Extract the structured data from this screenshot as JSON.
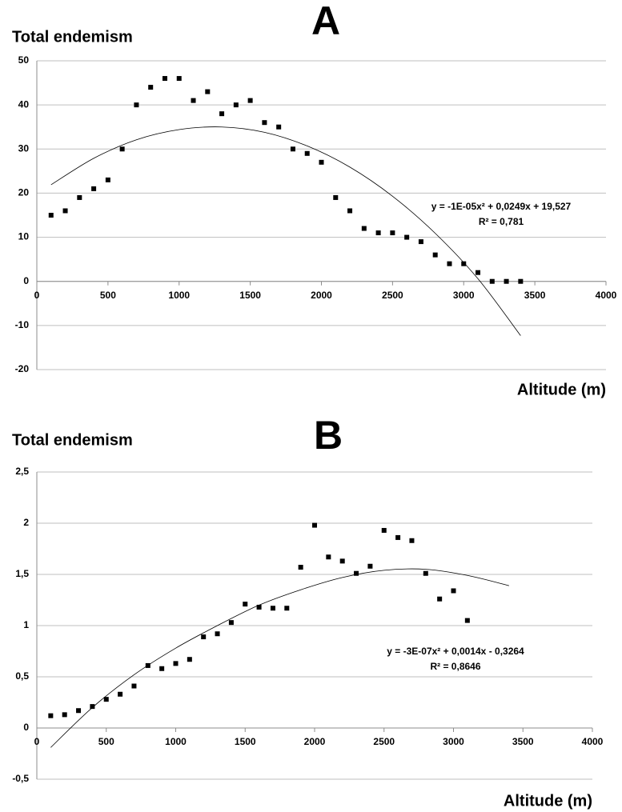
{
  "chart_data": [
    {
      "type": "scatter",
      "title": "A",
      "y_label": "Total endemism",
      "x_label": "Altitude (m)",
      "x": [
        100,
        200,
        300,
        400,
        500,
        600,
        700,
        800,
        900,
        1000,
        1100,
        1200,
        1300,
        1400,
        1500,
        1600,
        1700,
        1800,
        1900,
        2000,
        2100,
        2200,
        2300,
        2400,
        2500,
        2600,
        2700,
        2800,
        2900,
        3000,
        3100,
        3200,
        3300,
        3400
      ],
      "values": [
        15,
        16,
        19,
        21,
        23,
        30,
        40,
        44,
        46,
        46,
        41,
        43,
        38,
        40,
        41,
        36,
        35,
        30,
        29,
        27,
        19,
        16,
        12,
        11,
        11,
        10,
        9,
        6,
        4,
        4,
        2,
        0,
        0,
        0
      ],
      "color": "#000000",
      "trendline": {
        "x": [
          100,
          400,
          700,
          1000,
          1300,
          1600,
          1900,
          2200,
          2500,
          2800,
          3100,
          3400
        ],
        "values": [
          21.9,
          27.9,
          32.1,
          34.4,
          35.0,
          33.8,
          30.7,
          25.9,
          19.3,
          10.9,
          0.6,
          -12.3
        ],
        "color": "#000000",
        "equation": "y = -1E-05x² + 0,0249x + 19,527",
        "r_squared": "R² = 0,781"
      },
      "xlim": [
        0,
        4000
      ],
      "xticks": [
        0,
        500,
        1000,
        1500,
        2000,
        2500,
        3000,
        3500,
        4000
      ],
      "ylim": [
        -20,
        50
      ],
      "yticks": [
        -20,
        -10,
        0,
        10,
        20,
        30,
        40,
        50
      ],
      "grid": true
    },
    {
      "type": "scatter",
      "title": "B",
      "y_label": "Total endemism",
      "x_label": "Altitude (m)",
      "x": [
        100,
        200,
        300,
        400,
        500,
        600,
        700,
        800,
        900,
        1000,
        1100,
        1200,
        1300,
        1400,
        1500,
        1600,
        1700,
        1800,
        1900,
        2000,
        2100,
        2200,
        2300,
        2400,
        2500,
        2600,
        2700,
        2800,
        2900,
        3000,
        3100
      ],
      "values": [
        0.12,
        0.13,
        0.17,
        0.21,
        0.28,
        0.33,
        0.41,
        0.61,
        0.58,
        0.63,
        0.67,
        0.89,
        0.92,
        1.03,
        1.21,
        1.18,
        1.17,
        1.17,
        1.57,
        1.98,
        1.67,
        1.63,
        1.51,
        1.58,
        1.93,
        1.86,
        1.83,
        1.51,
        1.26,
        1.34,
        1.05
      ],
      "color": "#000000",
      "trendline": {
        "x": [
          100,
          400,
          700,
          1000,
          1300,
          1600,
          1900,
          2200,
          2500,
          2800,
          3100,
          3400
        ],
        "values": [
          -0.19,
          0.2,
          0.52,
          0.78,
          1.0,
          1.2,
          1.35,
          1.47,
          1.54,
          1.55,
          1.49,
          1.39
        ],
        "color": "#000000",
        "equation": "y = -3E-07x² + 0,0014x - 0,3264",
        "r_squared": "R² = 0,8646"
      },
      "xlim": [
        0,
        4000
      ],
      "xticks": [
        0,
        500,
        1000,
        1500,
        2000,
        2500,
        3000,
        3500,
        4000
      ],
      "ylim": [
        -0.5,
        2.5
      ],
      "yticks": [
        {
          "value": -0.5,
          "label": "-0,5"
        },
        0,
        {
          "value": 0.5,
          "label": "0,5"
        },
        1,
        {
          "value": 1.5,
          "label": "1,5"
        },
        2,
        {
          "value": 2.5,
          "label": "2,5"
        }
      ],
      "grid": true
    }
  ]
}
